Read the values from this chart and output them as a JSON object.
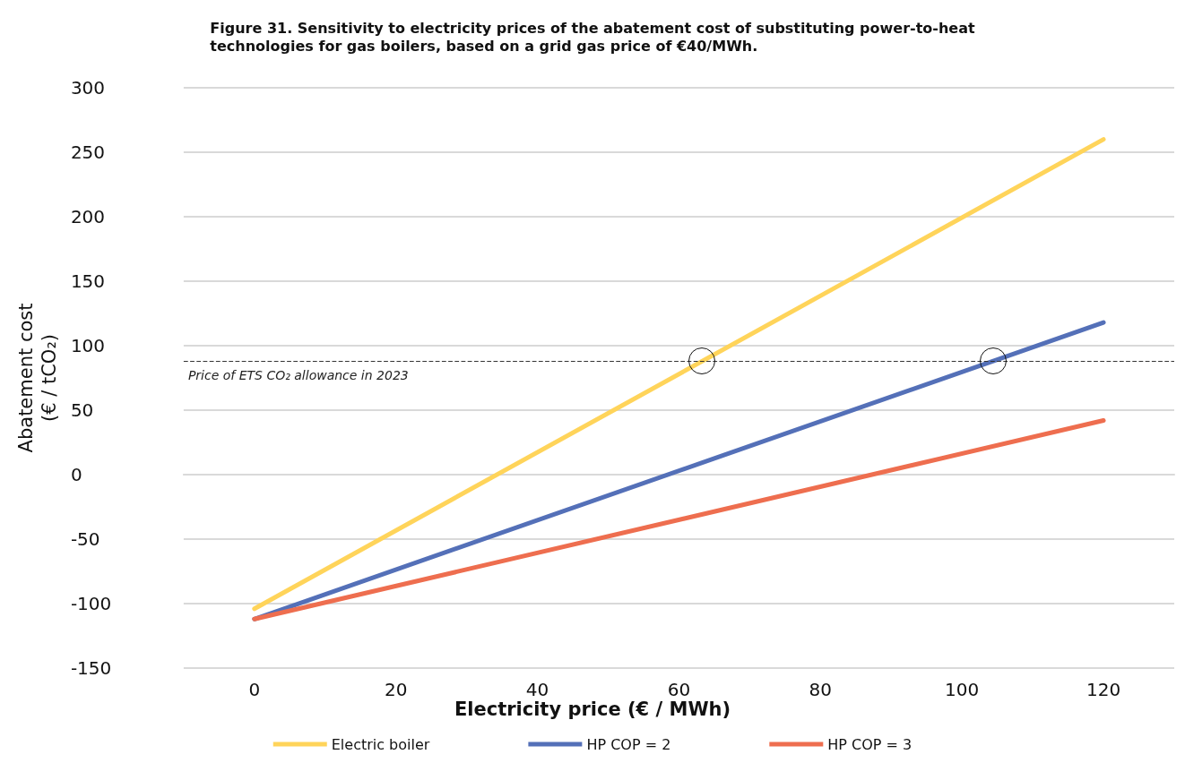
{
  "chart_data": {
    "type": "line",
    "title": "Figure 31. Sensitivity to electricity prices of the abatement cost of substituting power-to-heat\ntechnologies for gas boilers, based on a grid gas price of €40/MWh.",
    "xlabel": "Electricity price (€ / MWh)",
    "ylabel": "Abatement cost\n(€ / tCO₂)",
    "x": [
      0,
      120
    ],
    "series": [
      {
        "name": "Electric boiler",
        "color": "#ffd45a",
        "values": [
          -104,
          260
        ]
      },
      {
        "name": "HP COP = 2",
        "color": "#5470b8",
        "values": [
          -112,
          118
        ]
      },
      {
        "name": "HP COP = 3",
        "color": "#ee6e4f",
        "values": [
          -112,
          42
        ]
      }
    ],
    "xlim": [
      -10,
      130
    ],
    "xticks": [
      0,
      20,
      40,
      60,
      80,
      100,
      120
    ],
    "ylim": [
      -150,
      300
    ],
    "yticks": [
      -150,
      -100,
      -50,
      0,
      50,
      100,
      150,
      200,
      250,
      300
    ],
    "ref_lines": [
      {
        "axis": "y",
        "value": 88,
        "label": "Price of ETS CO₂ allowance in 2023",
        "color": "#333333",
        "line_style": "dashed"
      }
    ],
    "grid": "y",
    "legend": "bottom",
    "marker": "none",
    "line_style": "solid"
  }
}
